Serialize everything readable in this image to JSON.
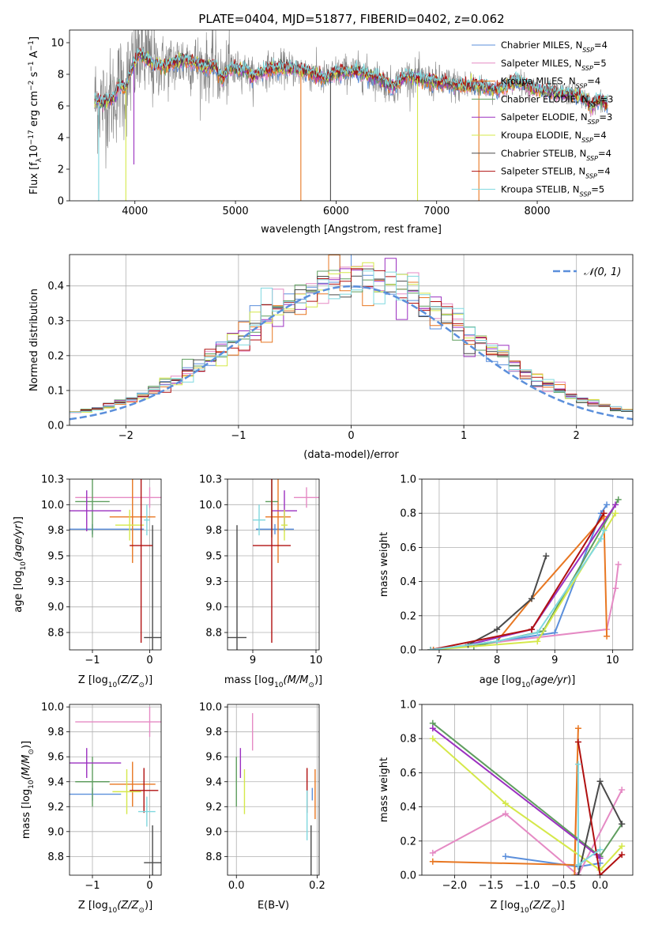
{
  "figure": {
    "title": "PLATE=0404, MJD=51877, FIBERID=0402, z=0.062"
  },
  "models": [
    {
      "name": "Chabrier MILES",
      "nssp": "4",
      "color": "#5b8fdb"
    },
    {
      "name": "Salpeter MILES",
      "nssp": "5",
      "color": "#e58ac4"
    },
    {
      "name": "Kroupa MILES",
      "nssp": "4",
      "color": "#e87722"
    },
    {
      "name": "Chabrier ELODIE",
      "nssp": "3",
      "color": "#5f9e5f"
    },
    {
      "name": "Salpeter ELODIE",
      "nssp": "3",
      "color": "#9b30c0"
    },
    {
      "name": "Kroupa ELODIE",
      "nssp": "4",
      "color": "#d5e84a"
    },
    {
      "name": "Chabrier STELIB",
      "nssp": "4",
      "color": "#4a4a4a"
    },
    {
      "name": "Salpeter STELIB",
      "nssp": "4",
      "color": "#b01010"
    },
    {
      "name": "Kroupa STELIB",
      "nssp": "5",
      "color": "#7fd8df"
    }
  ],
  "chart_data": [
    {
      "id": "spectrum",
      "type": "line",
      "xlabel": "wavelength [Angstrom, rest frame]",
      "ylabel_main": "Flux [f",
      "ylabel_sub": "λ",
      "ylabel_rest": "10",
      "ylabel_exp1": "−17",
      "ylabel_units": " erg cm",
      "ylabel_exp2": "−2",
      "ylabel_s": " s",
      "ylabel_exp3": "−1",
      "ylabel_A": " A",
      "ylabel_exp4": "−1",
      "ylabel_end": "]",
      "xlim": [
        3350,
        8950
      ],
      "ylim": [
        0,
        10.8
      ],
      "xticks": [
        4000,
        5000,
        6000,
        7000,
        8000
      ],
      "yticks": [
        0,
        2,
        4,
        6,
        8,
        10
      ],
      "data_color": "#808080",
      "continuum": [
        [
          3600,
          6.3
        ],
        [
          3700,
          6.2
        ],
        [
          3800,
          6.6
        ],
        [
          3850,
          7.4
        ],
        [
          3900,
          7.0
        ],
        [
          3950,
          8.0
        ],
        [
          4000,
          8.8
        ],
        [
          4050,
          9.3
        ],
        [
          4100,
          9.0
        ],
        [
          4200,
          8.6
        ],
        [
          4300,
          8.5
        ],
        [
          4400,
          8.7
        ],
        [
          4500,
          8.9
        ],
        [
          4600,
          8.7
        ],
        [
          4700,
          8.4
        ],
        [
          4800,
          8.6
        ],
        [
          4861,
          7.7
        ],
        [
          4950,
          8.4
        ],
        [
          5100,
          8.3
        ],
        [
          5175,
          7.8
        ],
        [
          5300,
          8.3
        ],
        [
          5500,
          8.4
        ],
        [
          5700,
          8.2
        ],
        [
          5890,
          7.7
        ],
        [
          6000,
          8.1
        ],
        [
          6200,
          8.2
        ],
        [
          6400,
          7.8
        ],
        [
          6563,
          7.2
        ],
        [
          6700,
          7.9
        ],
        [
          6900,
          7.6
        ],
        [
          7100,
          7.4
        ],
        [
          7300,
          7.2
        ],
        [
          7400,
          7.3
        ],
        [
          7600,
          7.0
        ],
        [
          7800,
          7.6
        ],
        [
          8000,
          7.0
        ],
        [
          8200,
          6.8
        ],
        [
          8400,
          6.7
        ],
        [
          8500,
          6.3
        ],
        [
          8540,
          5.9
        ],
        [
          8600,
          6.4
        ],
        [
          8700,
          6.2
        ]
      ]
    },
    {
      "id": "residuals",
      "type": "step",
      "xlabel": "(data-model)/error",
      "ylabel": "Normed distribution",
      "xlim": [
        -2.5,
        2.5
      ],
      "ylim": [
        0,
        0.49
      ],
      "xticks": [
        -2,
        -1,
        0,
        1,
        2
      ],
      "yticks": [
        0.0,
        0.1,
        0.2,
        0.3,
        0.4
      ],
      "gaussian_label": "𝒩(0, 1)",
      "gaussian_color": "#5b8fdb"
    },
    {
      "id": "age-vs-Z",
      "type": "errorbar",
      "xlabel": "Z [log",
      "ylabel": "age  [log",
      "xlim": [
        -1.4,
        0.2
      ],
      "ylim": [
        8.58,
        10.25
      ],
      "xticks": [
        -1,
        0
      ],
      "yticks": [
        8.75,
        9.0,
        9.25,
        9.5,
        9.75,
        10.0,
        10.25
      ],
      "points": [
        {
          "m": 0,
          "x": -1.0,
          "xe": 0.9,
          "y": 9.76,
          "ye": 0.05
        },
        {
          "m": 1,
          "x": 0.0,
          "xe": 1.3,
          "y": 10.07,
          "ye": 0.1
        },
        {
          "m": 2,
          "x": -0.3,
          "xe": 0.4,
          "y": 9.88,
          "ye": 0.45
        },
        {
          "m": 3,
          "x": -1.0,
          "xe": 0.3,
          "y": 10.03,
          "ye": 0.35
        },
        {
          "m": 4,
          "x": -1.1,
          "xe": 0.6,
          "y": 9.94,
          "ye": 0.2
        },
        {
          "m": 5,
          "x": -0.35,
          "xe": 0.25,
          "y": 9.8,
          "ye": 0.15
        },
        {
          "m": 6,
          "x": 0.05,
          "xe": 0.15,
          "y": 8.7,
          "ye": 1.1
        },
        {
          "m": 7,
          "x": -0.15,
          "xe": 0.2,
          "y": 9.6,
          "ye": 0.95
        },
        {
          "m": 8,
          "x": -0.05,
          "xe": 0.05,
          "y": 9.85,
          "ye": 0.15
        }
      ]
    },
    {
      "id": "age-vs-mass",
      "type": "errorbar",
      "xlabel": "mass [log",
      "xlim": [
        8.6,
        10.05
      ],
      "ylim": [
        8.58,
        10.25
      ],
      "xticks": [
        9,
        10
      ],
      "yticks": [
        8.75,
        9.0,
        9.25,
        9.5,
        9.75,
        10.0,
        10.25
      ],
      "points": [
        {
          "m": 0,
          "x": 9.35,
          "xe": 0.3,
          "y": 9.76,
          "ye": 0.05
        },
        {
          "m": 1,
          "x": 9.85,
          "xe": 0.2,
          "y": 10.07,
          "ye": 0.1
        },
        {
          "m": 2,
          "x": 9.4,
          "xe": 0.2,
          "y": 9.88,
          "ye": 0.45
        },
        {
          "m": 3,
          "x": 9.3,
          "xe": 0.1,
          "y": 10.03,
          "ye": 0.35
        },
        {
          "m": 4,
          "x": 9.5,
          "xe": 0.2,
          "y": 9.94,
          "ye": 0.2
        },
        {
          "m": 5,
          "x": 9.5,
          "xe": 0.05,
          "y": 9.8,
          "ye": 0.15
        },
        {
          "m": 6,
          "x": 8.75,
          "xe": 0.15,
          "y": 8.7,
          "ye": 1.1
        },
        {
          "m": 7,
          "x": 9.3,
          "xe": 0.3,
          "y": 9.6,
          "ye": 0.95
        },
        {
          "m": 8,
          "x": 9.1,
          "xe": 0.1,
          "y": 9.85,
          "ye": 0.15
        }
      ]
    },
    {
      "id": "mass-weight-vs-age",
      "type": "line",
      "xlabel": "age  [log",
      "ylabel": "mass weight",
      "xlim": [
        6.7,
        10.35
      ],
      "ylim": [
        0,
        1.0
      ],
      "xticks": [
        7,
        8,
        9,
        10
      ],
      "yticks": [
        0.0,
        0.2,
        0.4,
        0.6,
        0.8,
        1.0
      ],
      "series": [
        {
          "m": 0,
          "x": [
            6.9,
            8.0,
            9.0,
            9.8,
            9.9
          ],
          "y": [
            0.0,
            0.05,
            0.1,
            0.8,
            0.85
          ]
        },
        {
          "m": 1,
          "x": [
            6.85,
            9.9,
            10.05,
            10.1
          ],
          "y": [
            0.0,
            0.12,
            0.36,
            0.5
          ]
        },
        {
          "m": 2,
          "x": [
            6.9,
            8.0,
            8.6,
            9.85,
            9.9
          ],
          "y": [
            0.0,
            0.05,
            0.3,
            0.78,
            0.08
          ]
        },
        {
          "m": 3,
          "x": [
            7.6,
            8.0,
            8.8,
            10.1
          ],
          "y": [
            0.02,
            0.05,
            0.11,
            0.88
          ]
        },
        {
          "m": 4,
          "x": [
            7.5,
            8.6,
            10.05
          ],
          "y": [
            0.03,
            0.12,
            0.85
          ]
        },
        {
          "m": 5,
          "x": [
            6.85,
            8.7,
            10.05
          ],
          "y": [
            0.0,
            0.05,
            0.8
          ]
        },
        {
          "m": 6,
          "x": [
            7.5,
            8.0,
            8.6,
            8.85
          ],
          "y": [
            0.03,
            0.12,
            0.3,
            0.55
          ]
        },
        {
          "m": 7,
          "x": [
            6.85,
            8.6,
            9.85
          ],
          "y": [
            0.0,
            0.12,
            0.8
          ]
        },
        {
          "m": 8,
          "x": [
            6.85,
            8.0,
            8.7,
            9.8,
            9.85
          ],
          "y": [
            0.0,
            0.05,
            0.1,
            0.65,
            0.7
          ]
        }
      ]
    },
    {
      "id": "mass-vs-Z",
      "type": "errorbar",
      "xlabel": "Z [log",
      "ylabel": "mass [log",
      "xlim": [
        -1.4,
        0.2
      ],
      "ylim": [
        8.65,
        10.02
      ],
      "xticks": [
        -1,
        0
      ],
      "yticks": [
        8.8,
        9.0,
        9.2,
        9.4,
        9.6,
        9.8,
        10.0
      ],
      "points": [
        {
          "m": 0,
          "x": -1.0,
          "xe": 0.5,
          "y": 9.3,
          "ye": 0.05
        },
        {
          "m": 1,
          "x": 0.0,
          "xe": 1.3,
          "y": 9.88,
          "ye": 0.12
        },
        {
          "m": 2,
          "x": -0.3,
          "xe": 0.4,
          "y": 9.38,
          "ye": 0.18
        },
        {
          "m": 3,
          "x": -1.0,
          "xe": 0.3,
          "y": 9.4,
          "ye": 0.2
        },
        {
          "m": 4,
          "x": -1.1,
          "xe": 0.6,
          "y": 9.55,
          "ye": 0.12
        },
        {
          "m": 5,
          "x": -0.4,
          "xe": 0.25,
          "y": 9.32,
          "ye": 0.18
        },
        {
          "m": 6,
          "x": 0.05,
          "xe": 0.15,
          "y": 8.75,
          "ye": 0.3
        },
        {
          "m": 7,
          "x": -0.1,
          "xe": 0.25,
          "y": 9.33,
          "ye": 0.18
        },
        {
          "m": 8,
          "x": -0.05,
          "xe": 0.15,
          "y": 9.16,
          "ye": 0.12
        }
      ]
    },
    {
      "id": "mass-vs-EBV",
      "type": "errorbar",
      "xlabel": "E(B-V)",
      "xlim": [
        -0.022,
        0.205
      ],
      "ylim": [
        8.65,
        10.02
      ],
      "xticks": [
        0.0,
        0.2
      ],
      "yticks": [
        8.8,
        9.0,
        9.2,
        9.4,
        9.6,
        9.8,
        10.0
      ],
      "points": [
        {
          "m": 0,
          "x": 0.188,
          "ye": 0.05,
          "y": 9.3
        },
        {
          "m": 1,
          "x": 0.04,
          "ye": 0.15,
          "y": 9.8
        },
        {
          "m": 2,
          "x": 0.195,
          "ye": 0.2,
          "y": 9.3
        },
        {
          "m": 3,
          "x": 0.0,
          "ye": 0.2,
          "y": 9.4
        },
        {
          "m": 4,
          "x": 0.01,
          "ye": 0.12,
          "y": 9.55
        },
        {
          "m": 5,
          "x": 0.02,
          "ye": 0.18,
          "y": 9.32
        },
        {
          "m": 6,
          "x": 0.185,
          "ye": 0.3,
          "y": 8.75
        },
        {
          "m": 7,
          "x": 0.175,
          "ye": 0.18,
          "y": 9.33
        },
        {
          "m": 8,
          "x": 0.175,
          "ye": 0.2,
          "y": 9.13
        }
      ]
    },
    {
      "id": "mass-weight-vs-Z",
      "type": "line",
      "xlabel": "Z [log",
      "ylabel": "mass weight",
      "xlim": [
        -2.45,
        0.45
      ],
      "ylim": [
        0,
        1.0
      ],
      "xticks": [
        -2.0,
        -1.5,
        -1.0,
        -0.5,
        0.0
      ],
      "yticks": [
        0.0,
        0.2,
        0.4,
        0.6,
        0.8,
        1.0
      ],
      "series": [
        {
          "m": 0,
          "x": [
            -1.3,
            -0.3,
            0.0
          ],
          "y": [
            0.11,
            0.05,
            0.07
          ]
        },
        {
          "m": 1,
          "x": [
            -2.3,
            -1.3,
            -0.3,
            0.3
          ],
          "y": [
            0.13,
            0.36,
            0.0,
            0.5
          ]
        },
        {
          "m": 2,
          "x": [
            -2.3,
            -0.35,
            -0.3,
            -0.35
          ],
          "y": [
            0.08,
            0.06,
            0.86,
            0.0
          ]
        },
        {
          "m": 3,
          "x": [
            -2.3,
            0.0,
            0.3
          ],
          "y": [
            0.89,
            0.11,
            0.3
          ]
        },
        {
          "m": 4,
          "x": [
            -2.3,
            -0.05,
            0.0
          ],
          "y": [
            0.86,
            0.12,
            0.1
          ]
        },
        {
          "m": 5,
          "x": [
            -2.3,
            -1.3,
            0.0,
            0.3
          ],
          "y": [
            0.8,
            0.42,
            0.03,
            0.17
          ]
        },
        {
          "m": 6,
          "x": [
            -0.3,
            0.0,
            0.3
          ],
          "y": [
            0.0,
            0.55,
            0.3
          ]
        },
        {
          "m": 7,
          "x": [
            -0.3,
            0.0,
            0.3
          ],
          "y": [
            0.78,
            0.0,
            0.12
          ]
        },
        {
          "m": 8,
          "x": [
            -0.3,
            -0.3,
            0.0
          ],
          "y": [
            0.65,
            0.06,
            0.15
          ]
        }
      ]
    }
  ]
}
